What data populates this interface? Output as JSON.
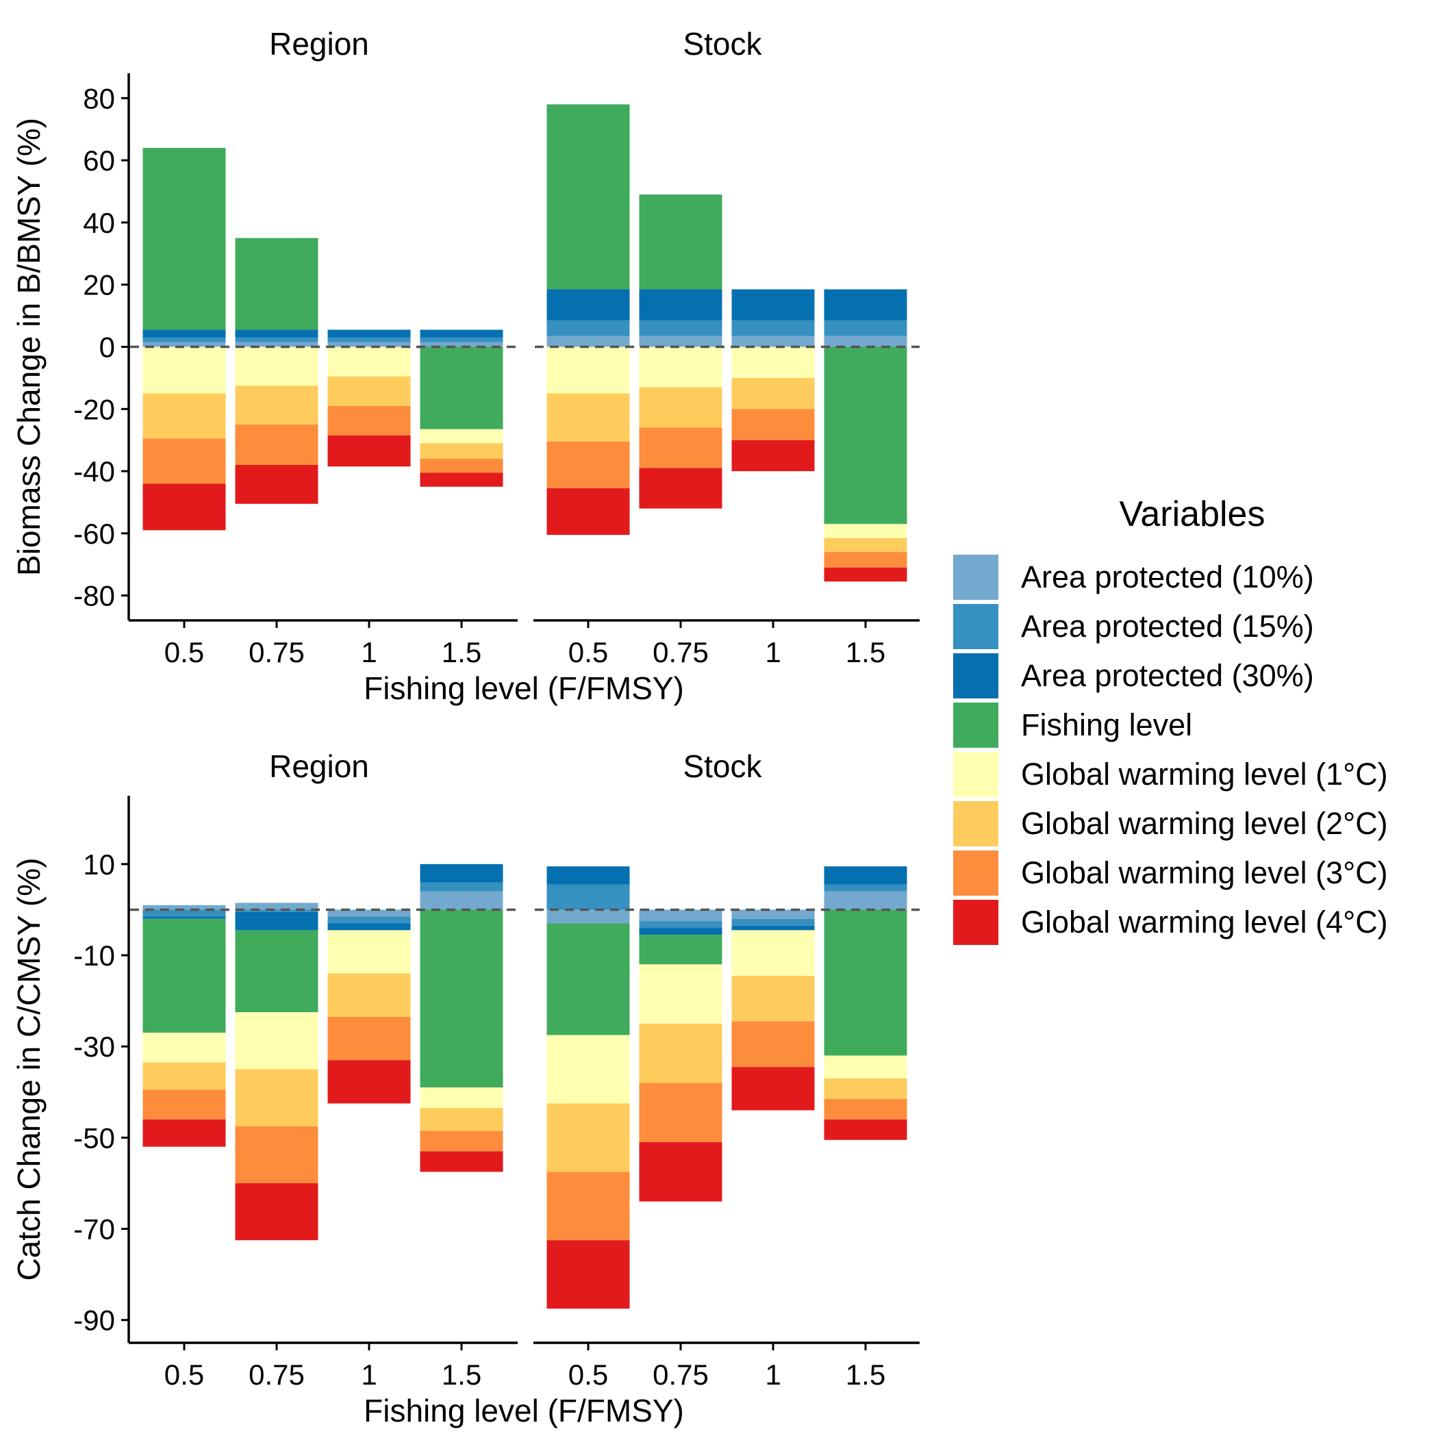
{
  "figure": {
    "legend_title": "Variables"
  },
  "legend": [
    {
      "key": "ap10",
      "label": "Area protected (10%)",
      "color": "#74a9cf"
    },
    {
      "key": "ap15",
      "label": "Area protected (15%)",
      "color": "#3690c0"
    },
    {
      "key": "ap30",
      "label": "Area protected (30%)",
      "color": "#0570b0"
    },
    {
      "key": "fish",
      "label": "Fishing level",
      "color": "#41ab5d"
    },
    {
      "key": "gw1",
      "label": "Global warming level (1°C)",
      "color": "#ffffb2"
    },
    {
      "key": "gw2",
      "label": "Global warming level (2°C)",
      "color": "#fecc5c"
    },
    {
      "key": "gw3",
      "label": "Global warming level (3°C)",
      "color": "#fd8d3c"
    },
    {
      "key": "gw4",
      "label": "Global warming level (4°C)",
      "color": "#e31a1c"
    }
  ],
  "chart_data": [
    {
      "type": "bar",
      "stacked": true,
      "ylabel": "Biomass Change in B/BMSY (%)",
      "xlabel": "Fishing level (F/FMSY)",
      "ylim": [
        -88,
        88
      ],
      "yticks": [
        80,
        60,
        40,
        20,
        0,
        -20,
        -40,
        -60,
        -80
      ],
      "categories": [
        "0.5",
        "0.75",
        "1",
        "1.5"
      ],
      "reference_line": 0,
      "panels": [
        {
          "facet": "Region",
          "bars": [
            {
              "category": "0.5",
              "segments": [
                {
                  "key": "ap10",
                  "y0": 0,
                  "y1": 1.5
                },
                {
                  "key": "ap15",
                  "y0": 1.5,
                  "y1": 3
                },
                {
                  "key": "ap30",
                  "y0": 3,
                  "y1": 5.5
                },
                {
                  "key": "fish",
                  "y0": 5.5,
                  "y1": 64
                },
                {
                  "key": "gw1",
                  "y0": 0,
                  "y1": -15
                },
                {
                  "key": "gw2",
                  "y0": -15,
                  "y1": -29.5
                },
                {
                  "key": "gw3",
                  "y0": -29.5,
                  "y1": -44
                },
                {
                  "key": "gw4",
                  "y0": -44,
                  "y1": -59
                }
              ]
            },
            {
              "category": "0.75",
              "segments": [
                {
                  "key": "ap10",
                  "y0": 0,
                  "y1": 1.5
                },
                {
                  "key": "ap15",
                  "y0": 1.5,
                  "y1": 3
                },
                {
                  "key": "ap30",
                  "y0": 3,
                  "y1": 5.5
                },
                {
                  "key": "fish",
                  "y0": 5.5,
                  "y1": 35
                },
                {
                  "key": "gw1",
                  "y0": 0,
                  "y1": -12.5
                },
                {
                  "key": "gw2",
                  "y0": -12.5,
                  "y1": -25
                },
                {
                  "key": "gw3",
                  "y0": -25,
                  "y1": -38
                },
                {
                  "key": "gw4",
                  "y0": -38,
                  "y1": -50.5
                }
              ]
            },
            {
              "category": "1",
              "segments": [
                {
                  "key": "ap10",
                  "y0": 0,
                  "y1": 1.5
                },
                {
                  "key": "ap15",
                  "y0": 1.5,
                  "y1": 3
                },
                {
                  "key": "ap30",
                  "y0": 3,
                  "y1": 5.5
                },
                {
                  "key": "gw1",
                  "y0": 0,
                  "y1": -9.5
                },
                {
                  "key": "gw2",
                  "y0": -9.5,
                  "y1": -19
                },
                {
                  "key": "gw3",
                  "y0": -19,
                  "y1": -28.5
                },
                {
                  "key": "gw4",
                  "y0": -28.5,
                  "y1": -38.5
                }
              ]
            },
            {
              "category": "1.5",
              "segments": [
                {
                  "key": "ap10",
                  "y0": 0,
                  "y1": 1.5
                },
                {
                  "key": "ap15",
                  "y0": 1.5,
                  "y1": 3
                },
                {
                  "key": "ap30",
                  "y0": 3,
                  "y1": 5.5
                },
                {
                  "key": "fish",
                  "y0": 0,
                  "y1": -26.5
                },
                {
                  "key": "gw1",
                  "y0": -26.5,
                  "y1": -31
                },
                {
                  "key": "gw2",
                  "y0": -31,
                  "y1": -36
                },
                {
                  "key": "gw3",
                  "y0": -36,
                  "y1": -40.5
                },
                {
                  "key": "gw4",
                  "y0": -40.5,
                  "y1": -45
                }
              ]
            }
          ]
        },
        {
          "facet": "Stock",
          "bars": [
            {
              "category": "0.5",
              "segments": [
                {
                  "key": "ap10",
                  "y0": 0,
                  "y1": 3.5
                },
                {
                  "key": "ap15",
                  "y0": 3.5,
                  "y1": 8.5
                },
                {
                  "key": "ap30",
                  "y0": 8.5,
                  "y1": 18.5
                },
                {
                  "key": "fish",
                  "y0": 18.5,
                  "y1": 78
                },
                {
                  "key": "gw1",
                  "y0": 0,
                  "y1": -15
                },
                {
                  "key": "gw2",
                  "y0": -15,
                  "y1": -30.5
                },
                {
                  "key": "gw3",
                  "y0": -30.5,
                  "y1": -45.5
                },
                {
                  "key": "gw4",
                  "y0": -45.5,
                  "y1": -60.5
                }
              ]
            },
            {
              "category": "0.75",
              "segments": [
                {
                  "key": "ap10",
                  "y0": 0,
                  "y1": 3.5
                },
                {
                  "key": "ap15",
                  "y0": 3.5,
                  "y1": 8.5
                },
                {
                  "key": "ap30",
                  "y0": 8.5,
                  "y1": 18.5
                },
                {
                  "key": "fish",
                  "y0": 18.5,
                  "y1": 49
                },
                {
                  "key": "gw1",
                  "y0": 0,
                  "y1": -13
                },
                {
                  "key": "gw2",
                  "y0": -13,
                  "y1": -26
                },
                {
                  "key": "gw3",
                  "y0": -26,
                  "y1": -39
                },
                {
                  "key": "gw4",
                  "y0": -39,
                  "y1": -52
                }
              ]
            },
            {
              "category": "1",
              "segments": [
                {
                  "key": "ap10",
                  "y0": 0,
                  "y1": 3.5
                },
                {
                  "key": "ap15",
                  "y0": 3.5,
                  "y1": 8.5
                },
                {
                  "key": "ap30",
                  "y0": 8.5,
                  "y1": 18.5
                },
                {
                  "key": "gw1",
                  "y0": 0,
                  "y1": -10
                },
                {
                  "key": "gw2",
                  "y0": -10,
                  "y1": -20
                },
                {
                  "key": "gw3",
                  "y0": -20,
                  "y1": -30
                },
                {
                  "key": "gw4",
                  "y0": -30,
                  "y1": -40
                }
              ]
            },
            {
              "category": "1.5",
              "segments": [
                {
                  "key": "ap10",
                  "y0": 0,
                  "y1": 3.5
                },
                {
                  "key": "ap15",
                  "y0": 3.5,
                  "y1": 8.5
                },
                {
                  "key": "ap30",
                  "y0": 8.5,
                  "y1": 18.5
                },
                {
                  "key": "fish",
                  "y0": 0,
                  "y1": -57
                },
                {
                  "key": "gw1",
                  "y0": -57,
                  "y1": -61.5
                },
                {
                  "key": "gw2",
                  "y0": -61.5,
                  "y1": -66
                },
                {
                  "key": "gw3",
                  "y0": -66,
                  "y1": -71
                },
                {
                  "key": "gw4",
                  "y0": -71,
                  "y1": -75.5
                }
              ]
            }
          ]
        }
      ]
    },
    {
      "type": "bar",
      "stacked": true,
      "ylabel": "Catch Change in C/CMSY (%)",
      "xlabel": "Fishing level (F/FMSY)",
      "ylim": [
        -95,
        25
      ],
      "yticks": [
        10,
        -10,
        -30,
        -50,
        -70,
        -90
      ],
      "categories": [
        "0.5",
        "0.75",
        "1",
        "1.5"
      ],
      "reference_line": 0,
      "panels": [
        {
          "facet": "Region",
          "bars": [
            {
              "category": "0.5",
              "segments": [
                {
                  "key": "ap10",
                  "y0": 0,
                  "y1": 1
                },
                {
                  "key": "ap15",
                  "y0": 0,
                  "y1": -1.5
                },
                {
                  "key": "ap30",
                  "y0": -1.5,
                  "y1": -2
                },
                {
                  "key": "fish",
                  "y0": -2,
                  "y1": -27
                },
                {
                  "key": "gw1",
                  "y0": -27,
                  "y1": -33.5
                },
                {
                  "key": "gw2",
                  "y0": -33.5,
                  "y1": -39.5
                },
                {
                  "key": "gw3",
                  "y0": -39.5,
                  "y1": -46
                },
                {
                  "key": "gw4",
                  "y0": -46,
                  "y1": -52
                }
              ]
            },
            {
              "category": "0.75",
              "segments": [
                {
                  "key": "ap10",
                  "y0": 0,
                  "y1": 1.5
                },
                {
                  "key": "ap15",
                  "y0": 0,
                  "y1": -0.5
                },
                {
                  "key": "ap30",
                  "y0": -0.5,
                  "y1": -4.5
                },
                {
                  "key": "fish",
                  "y0": -4.5,
                  "y1": -22.5
                },
                {
                  "key": "gw1",
                  "y0": -22.5,
                  "y1": -35
                },
                {
                  "key": "gw2",
                  "y0": -35,
                  "y1": -47.5
                },
                {
                  "key": "gw3",
                  "y0": -47.5,
                  "y1": -60
                },
                {
                  "key": "gw4",
                  "y0": -60,
                  "y1": -72.5
                }
              ]
            },
            {
              "category": "1",
              "segments": [
                {
                  "key": "ap10",
                  "y0": 0,
                  "y1": -1.5
                },
                {
                  "key": "ap15",
                  "y0": -1.5,
                  "y1": -3
                },
                {
                  "key": "ap30",
                  "y0": -3,
                  "y1": -4.5
                },
                {
                  "key": "gw1",
                  "y0": -4.5,
                  "y1": -14
                },
                {
                  "key": "gw2",
                  "y0": -14,
                  "y1": -23.5
                },
                {
                  "key": "gw3",
                  "y0": -23.5,
                  "y1": -33
                },
                {
                  "key": "gw4",
                  "y0": -33,
                  "y1": -42.5
                }
              ]
            },
            {
              "category": "1.5",
              "segments": [
                {
                  "key": "ap10",
                  "y0": 0,
                  "y1": 4
                },
                {
                  "key": "ap15",
                  "y0": 4,
                  "y1": 6
                },
                {
                  "key": "ap30",
                  "y0": 6,
                  "y1": 10
                },
                {
                  "key": "fish",
                  "y0": 0,
                  "y1": -39
                },
                {
                  "key": "gw1",
                  "y0": -39,
                  "y1": -43.5
                },
                {
                  "key": "gw2",
                  "y0": -43.5,
                  "y1": -48.5
                },
                {
                  "key": "gw3",
                  "y0": -48.5,
                  "y1": -53
                },
                {
                  "key": "gw4",
                  "y0": -53,
                  "y1": -57.5
                }
              ]
            }
          ]
        },
        {
          "facet": "Stock",
          "bars": [
            {
              "category": "0.5",
              "segments": [
                {
                  "key": "ap10",
                  "y0": 0,
                  "y1": -3
                },
                {
                  "key": "ap15",
                  "y0": 0,
                  "y1": 5.5
                },
                {
                  "key": "ap30",
                  "y0": 5.5,
                  "y1": 9.5
                },
                {
                  "key": "fish",
                  "y0": -3,
                  "y1": -27.5
                },
                {
                  "key": "gw1",
                  "y0": -27.5,
                  "y1": -42.5
                },
                {
                  "key": "gw2",
                  "y0": -42.5,
                  "y1": -57.5
                },
                {
                  "key": "gw3",
                  "y0": -57.5,
                  "y1": -72.5
                },
                {
                  "key": "gw4",
                  "y0": -72.5,
                  "y1": -87.5
                }
              ]
            },
            {
              "category": "0.75",
              "segments": [
                {
                  "key": "ap10",
                  "y0": 0,
                  "y1": -2.5
                },
                {
                  "key": "ap15",
                  "y0": -2.5,
                  "y1": -4
                },
                {
                  "key": "ap30",
                  "y0": -4,
                  "y1": -5.5
                },
                {
                  "key": "fish",
                  "y0": -5.5,
                  "y1": -12
                },
                {
                  "key": "gw1",
                  "y0": -12,
                  "y1": -25
                },
                {
                  "key": "gw2",
                  "y0": -25,
                  "y1": -38
                },
                {
                  "key": "gw3",
                  "y0": -38,
                  "y1": -51
                },
                {
                  "key": "gw4",
                  "y0": -51,
                  "y1": -64
                }
              ]
            },
            {
              "category": "1",
              "segments": [
                {
                  "key": "ap10",
                  "y0": 0,
                  "y1": -2
                },
                {
                  "key": "ap15",
                  "y0": -2,
                  "y1": -3.5
                },
                {
                  "key": "ap30",
                  "y0": -3.5,
                  "y1": -4.5
                },
                {
                  "key": "gw1",
                  "y0": -4.5,
                  "y1": -14.5
                },
                {
                  "key": "gw2",
                  "y0": -14.5,
                  "y1": -24.5
                },
                {
                  "key": "gw3",
                  "y0": -24.5,
                  "y1": -34.5
                },
                {
                  "key": "gw4",
                  "y0": -34.5,
                  "y1": -44
                }
              ]
            },
            {
              "category": "1.5",
              "segments": [
                {
                  "key": "ap10",
                  "y0": 0,
                  "y1": 4
                },
                {
                  "key": "ap15",
                  "y0": 4,
                  "y1": 5.5
                },
                {
                  "key": "ap30",
                  "y0": 5.5,
                  "y1": 9.5
                },
                {
                  "key": "fish",
                  "y0": 0,
                  "y1": -32
                },
                {
                  "key": "gw1",
                  "y0": -32,
                  "y1": -37
                },
                {
                  "key": "gw2",
                  "y0": -37,
                  "y1": -41.5
                },
                {
                  "key": "gw3",
                  "y0": -41.5,
                  "y1": -46
                },
                {
                  "key": "gw4",
                  "y0": -46,
                  "y1": -50.5
                }
              ]
            }
          ]
        }
      ]
    }
  ]
}
